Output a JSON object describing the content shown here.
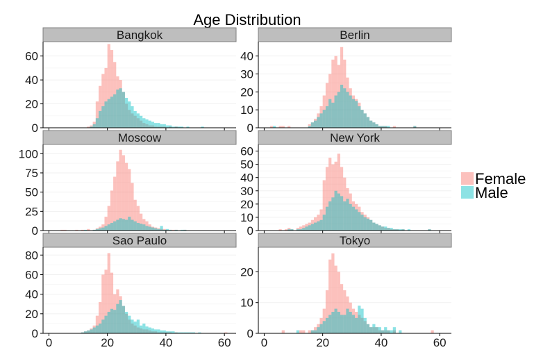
{
  "chart_data": {
    "type": "histogram-facet",
    "title": "Age Distribution",
    "xlabel": "",
    "ylabel": "",
    "xlim": [
      -2,
      64
    ],
    "x_ticks": [
      0,
      20,
      40,
      60
    ],
    "bin_width": 1,
    "grid": true,
    "legend_position": "right",
    "series_names": [
      "Female",
      "Male"
    ],
    "colors": {
      "Female": "#F8766D",
      "Male": "#00BFC4",
      "strip_bg": "#BEBEBE",
      "strip_border": "#7F7F7F"
    },
    "panels": [
      {
        "name": "Bangkok",
        "ylim": [
          0,
          72
        ],
        "y_ticks": [
          0,
          20,
          40,
          60
        ],
        "series": [
          {
            "name": "Female",
            "start": 13,
            "values": [
              1,
              2,
              5,
              22,
              35,
              45,
              50,
              70,
              65,
              55,
              43,
              40,
              30,
              20,
              15,
              12,
              10,
              8,
              6,
              4,
              3,
              2,
              2,
              1,
              1,
              1,
              1,
              0,
              1,
              0,
              1,
              0,
              0,
              0,
              0,
              0,
              0,
              0,
              0,
              0
            ]
          },
          {
            "name": "Male",
            "start": 13,
            "values": [
              0,
              1,
              3,
              8,
              14,
              18,
              22,
              24,
              26,
              28,
              32,
              33,
              30,
              25,
              22,
              18,
              14,
              12,
              10,
              8,
              7,
              6,
              5,
              4,
              4,
              3,
              3,
              2,
              2,
              1,
              1,
              1,
              1,
              0,
              1,
              0,
              0,
              0,
              0,
              1
            ]
          }
        ]
      },
      {
        "name": "Berlin",
        "ylim": [
          0,
          48
        ],
        "y_ticks": [
          0,
          10,
          20,
          30,
          40
        ],
        "series": [
          {
            "name": "Female",
            "start": 2,
            "values": [
              1,
              0,
              0,
              1,
              1,
              0,
              1,
              0,
              0,
              0,
              0,
              0,
              0,
              2,
              3,
              5,
              8,
              12,
              18,
              25,
              30,
              38,
              40,
              35,
              45,
              38,
              28,
              22,
              18,
              16,
              14,
              10,
              8,
              6,
              4,
              3,
              2,
              1,
              1,
              1,
              0,
              0,
              1,
              0,
              0,
              0,
              0,
              0,
              0,
              1
            ]
          },
          {
            "name": "Male",
            "start": 2,
            "values": [
              0,
              1,
              0,
              0,
              0,
              0,
              0,
              0,
              0,
              0,
              0,
              0,
              0,
              1,
              3,
              4,
              6,
              8,
              10,
              12,
              16,
              14,
              18,
              20,
              24,
              22,
              20,
              18,
              16,
              15,
              12,
              10,
              8,
              6,
              4,
              3,
              2,
              1,
              1,
              1,
              1,
              0,
              0,
              0,
              0,
              0,
              0,
              0,
              0,
              1
            ]
          }
        ]
      },
      {
        "name": "Moscow",
        "ylim": [
          0,
          112
        ],
        "y_ticks": [
          0,
          25,
          50,
          75,
          100
        ],
        "series": [
          {
            "name": "Female",
            "start": 4,
            "values": [
              1,
              1,
              0,
              0,
              0,
              1,
              0,
              1,
              0,
              2,
              0,
              1,
              3,
              5,
              8,
              18,
              32,
              52,
              70,
              90,
              105,
              98,
              88,
              80,
              62,
              40,
              32,
              22,
              15,
              12,
              8,
              5,
              4,
              3,
              2,
              2,
              1,
              1,
              1,
              1,
              0,
              0,
              1,
              0
            ]
          },
          {
            "name": "Male",
            "start": 4,
            "values": [
              0,
              0,
              0,
              0,
              0,
              0,
              0,
              0,
              1,
              0,
              0,
              1,
              2,
              3,
              4,
              6,
              8,
              10,
              12,
              14,
              16,
              15,
              14,
              18,
              14,
              12,
              10,
              9,
              8,
              6,
              5,
              4,
              3,
              2,
              6,
              1,
              2,
              1,
              0,
              1,
              0,
              1,
              1,
              0
            ]
          }
        ]
      },
      {
        "name": "New York",
        "ylim": [
          0,
          65
        ],
        "y_ticks": [
          0,
          10,
          20,
          30,
          40,
          50,
          60
        ],
        "series": [
          {
            "name": "Female",
            "start": 5,
            "values": [
              1,
              0,
              1,
              2,
              1,
              0,
              2,
              3,
              4,
              5,
              6,
              8,
              10,
              12,
              16,
              38,
              48,
              55,
              50,
              52,
              58,
              48,
              40,
              32,
              28,
              22,
              20,
              18,
              14,
              12,
              10,
              8,
              6,
              5,
              4,
              3,
              2,
              2,
              1,
              1,
              1,
              0,
              1,
              0,
              0,
              0,
              0,
              0,
              0,
              0,
              0,
              1
            ]
          },
          {
            "name": "Male",
            "start": 5,
            "values": [
              0,
              0,
              0,
              1,
              1,
              0,
              1,
              1,
              2,
              3,
              4,
              5,
              6,
              7,
              8,
              12,
              18,
              22,
              25,
              30,
              28,
              26,
              22,
              24,
              20,
              18,
              16,
              14,
              12,
              10,
              9,
              8,
              6,
              5,
              4,
              3,
              3,
              2,
              2,
              1,
              1,
              1,
              1,
              0,
              1,
              0,
              0,
              0,
              0,
              0,
              0,
              1
            ]
          }
        ]
      },
      {
        "name": "Sao Paulo",
        "ylim": [
          0,
          88
        ],
        "y_ticks": [
          0,
          20,
          40,
          60,
          80
        ],
        "series": [
          {
            "name": "Female",
            "start": 11,
            "values": [
              1,
              2,
              3,
              5,
              8,
              18,
              32,
              60,
              65,
              82,
              62,
              40,
              45,
              38,
              28,
              20,
              14,
              10,
              8,
              6,
              5,
              4,
              4,
              3,
              2,
              2,
              1,
              1,
              1,
              1,
              1,
              0,
              1,
              0,
              0,
              0,
              0,
              0,
              0,
              0,
              0,
              0,
              0,
              0,
              0,
              0,
              0,
              0,
              0,
              1
            ]
          },
          {
            "name": "Male",
            "start": 11,
            "values": [
              1,
              2,
              3,
              4,
              6,
              8,
              10,
              14,
              18,
              22,
              25,
              24,
              30,
              34,
              28,
              22,
              18,
              14,
              12,
              14,
              8,
              10,
              7,
              6,
              5,
              4,
              4,
              3,
              3,
              2,
              2,
              2,
              1,
              1,
              1,
              1,
              1,
              1,
              1,
              0,
              1,
              0,
              0,
              0,
              0,
              0,
              0,
              0,
              0,
              0
            ]
          }
        ]
      },
      {
        "name": "Tokyo",
        "ylim": [
          0,
          28
        ],
        "y_ticks": [
          0,
          10,
          20
        ],
        "series": [
          {
            "name": "Female",
            "start": 6,
            "values": [
              1,
              0,
              0,
              0,
              0,
              0,
              1,
              1,
              0,
              1,
              1,
              2,
              3,
              5,
              8,
              14,
              24,
              26,
              22,
              20,
              16,
              14,
              12,
              10,
              8,
              7,
              6,
              5,
              4,
              3,
              2,
              2,
              2,
              1,
              1,
              1,
              1,
              0,
              1,
              0,
              0,
              0,
              0,
              0,
              0,
              0,
              0,
              0,
              0,
              0,
              0,
              1
            ]
          },
          {
            "name": "Male",
            "start": 6,
            "values": [
              0,
              0,
              0,
              0,
              0,
              1,
              0,
              0,
              0,
              0,
              1,
              1,
              2,
              3,
              4,
              5,
              6,
              7,
              8,
              7,
              6,
              6,
              8,
              7,
              6,
              5,
              9,
              8,
              5,
              3,
              2,
              3,
              2,
              2,
              1,
              2,
              1,
              1,
              2,
              0,
              1,
              0,
              0,
              0,
              0,
              0,
              0,
              0,
              0,
              0,
              0,
              0
            ]
          }
        ]
      }
    ]
  }
}
